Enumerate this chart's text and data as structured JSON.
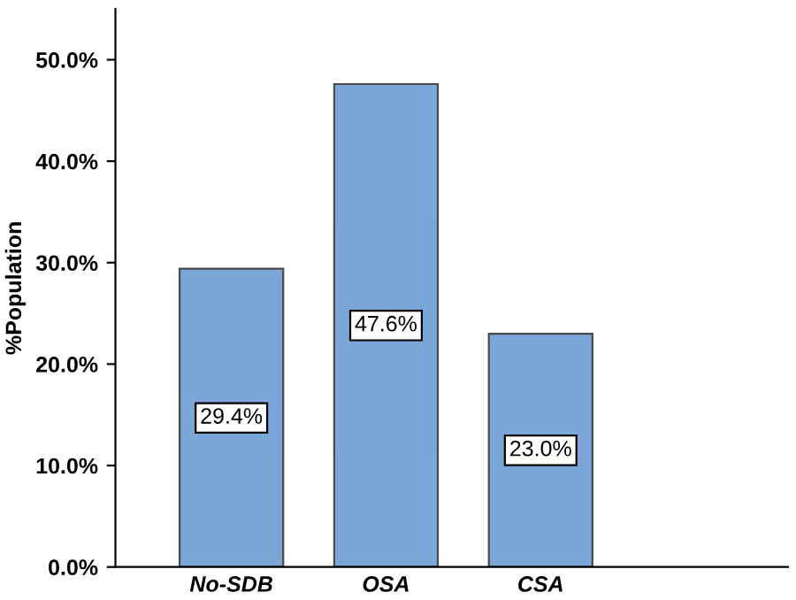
{
  "chart_data": {
    "type": "bar",
    "ylabel": "%Population",
    "categories": [
      "No-SDB",
      "OSA",
      "CSA"
    ],
    "values": [
      29.4,
      47.6,
      23.0
    ],
    "value_labels": [
      "29.4%",
      "47.6%",
      "23.0%"
    ],
    "color": "#7aa7d8",
    "ylim": [
      0,
      55
    ],
    "yticks": [
      {
        "value": 0,
        "label": "0.0%"
      },
      {
        "value": 10,
        "label": "10.0%"
      },
      {
        "value": 20,
        "label": "20.0%"
      },
      {
        "value": 30,
        "label": "30.0%"
      },
      {
        "value": 40,
        "label": "40.0%"
      },
      {
        "value": 50,
        "label": "50.0%"
      }
    ],
    "grid": false
  }
}
